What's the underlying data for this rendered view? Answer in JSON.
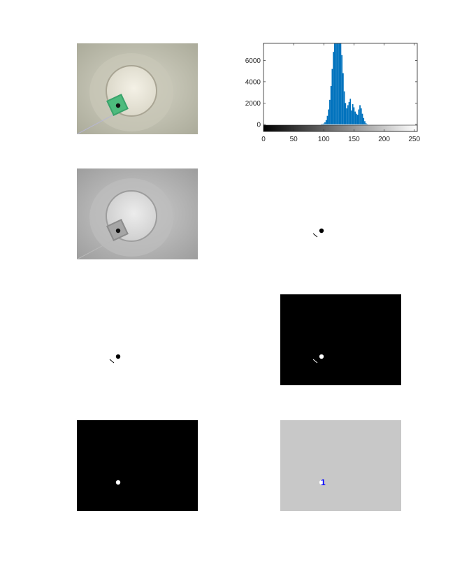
{
  "figure": {
    "panel_count": 8
  },
  "panels": {
    "rgb_photo": {
      "content": "photograph of green die inside white cylinder"
    },
    "grayscale_photo": {
      "content": "grayscale version of photograph"
    },
    "threshold_mask": {
      "content": "binary mask, black blobs on white"
    },
    "filled_mask": {
      "content": "binary mask, black blobs on white"
    },
    "complement_mask": {
      "content": "inverted mask, white blobs on black"
    },
    "cleaned_mask": {
      "content": "single white blob on black"
    },
    "labeled_regions": {
      "label_text": "1",
      "label_color": "#0000ff",
      "background_color": "#c8c8c8"
    }
  },
  "chart_data": {
    "type": "bar",
    "title": "",
    "xlabel": "",
    "ylabel": "",
    "xlim": [
      0,
      255
    ],
    "ylim": [
      -400,
      7600
    ],
    "xticks": [
      0,
      50,
      100,
      150,
      200,
      250
    ],
    "yticks": [
      0,
      2000,
      4000,
      6000
    ],
    "x_tick_labels": [
      "0",
      "50",
      "100",
      "150",
      "200",
      "250"
    ],
    "y_tick_labels": [
      "0",
      "2000",
      "4000",
      "6000"
    ],
    "bar_color": "#0072bd",
    "colorbar": "grayscale 0-255",
    "grid": false,
    "x": [
      96,
      98,
      100,
      102,
      104,
      106,
      108,
      110,
      112,
      114,
      116,
      118,
      120,
      122,
      124,
      126,
      128,
      130,
      132,
      134,
      136,
      138,
      140,
      142,
      144,
      146,
      148,
      150,
      152,
      154,
      156,
      158,
      160,
      162,
      164,
      166,
      168,
      170,
      172
    ],
    "values": [
      20,
      40,
      80,
      200,
      400,
      800,
      1400,
      2300,
      3600,
      5200,
      6800,
      7600,
      7600,
      7600,
      7600,
      7600,
      7600,
      6500,
      4800,
      3100,
      2000,
      1500,
      1800,
      2100,
      2400,
      1300,
      1900,
      1600,
      1200,
      1000,
      900,
      1400,
      1800,
      1500,
      1000,
      600,
      300,
      100,
      20
    ]
  }
}
